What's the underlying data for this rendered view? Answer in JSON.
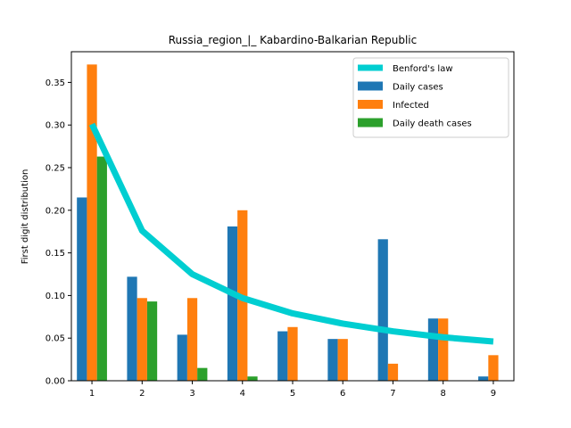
{
  "chart_data": {
    "type": "bar",
    "title": "Russia_region_|_ Kabardino-Balkarian Republic",
    "xlabel": "",
    "ylabel": "First digit distribution",
    "categories": [
      "1",
      "2",
      "3",
      "4",
      "5",
      "6",
      "7",
      "8",
      "9"
    ],
    "ylim": [
      0,
      0.386
    ],
    "yticks": [
      "0.00",
      "0.05",
      "0.10",
      "0.15",
      "0.20",
      "0.25",
      "0.30",
      "0.35"
    ],
    "grid": false,
    "legend_position": "top-right",
    "line": {
      "name": "Benford's law",
      "color": "#00CED1",
      "values": [
        0.301,
        0.176,
        0.125,
        0.097,
        0.079,
        0.067,
        0.058,
        0.051,
        0.046
      ]
    },
    "series": [
      {
        "name": "Daily cases",
        "color": "#1f77b4",
        "values": [
          0.215,
          0.122,
          0.054,
          0.181,
          0.058,
          0.049,
          0.166,
          0.073,
          0.005
        ]
      },
      {
        "name": "Infected",
        "color": "#ff7f0e",
        "values": [
          0.371,
          0.097,
          0.097,
          0.2,
          0.063,
          0.049,
          0.02,
          0.073,
          0.03
        ]
      },
      {
        "name": "Daily death cases",
        "color": "#2ca02c",
        "values": [
          0.263,
          0.093,
          0.015,
          0.005,
          0.0,
          0.0,
          0.0,
          0.0,
          0.0
        ]
      }
    ]
  }
}
